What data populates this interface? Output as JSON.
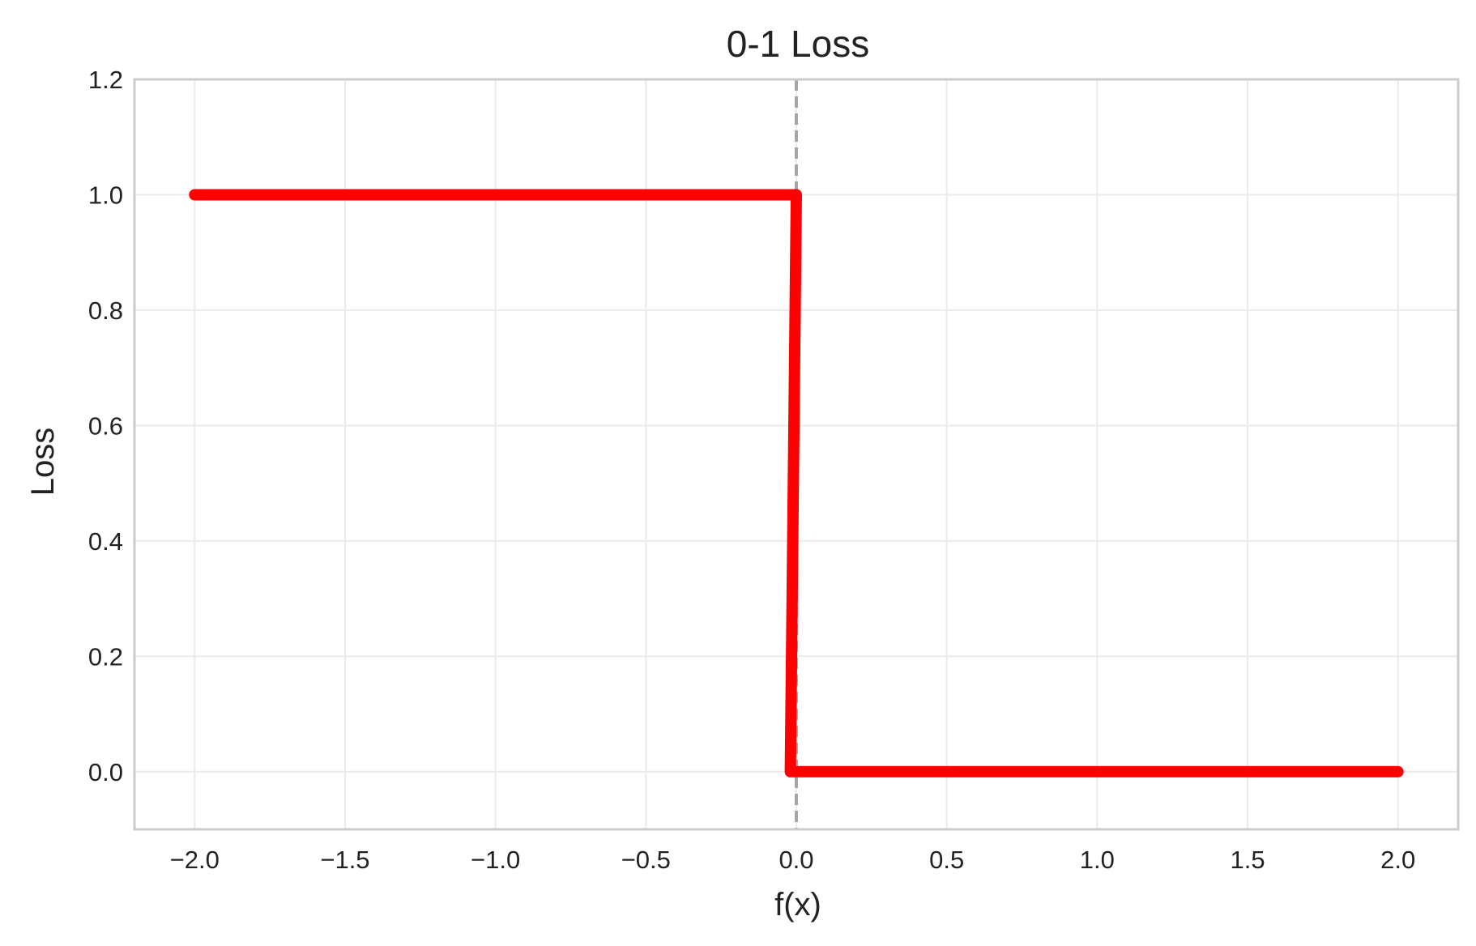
{
  "chart_data": {
    "type": "line",
    "title": "0-1 Loss",
    "xlabel": "f(x)",
    "ylabel": "Loss",
    "xlim": [
      -2.2,
      2.2
    ],
    "ylim": [
      -0.1,
      1.2
    ],
    "xticks": [
      -2.0,
      -1.5,
      -1.0,
      -0.5,
      0.0,
      0.5,
      1.0,
      1.5,
      2.0
    ],
    "xtick_labels": [
      "−2.0",
      "−1.5",
      "−1.0",
      "−0.5",
      "0.0",
      "0.5",
      "1.0",
      "1.5",
      "2.0"
    ],
    "yticks": [
      0.0,
      0.2,
      0.4,
      0.6,
      0.8,
      1.0,
      1.2
    ],
    "ytick_labels": [
      "0.0",
      "0.2",
      "0.4",
      "0.6",
      "0.8",
      "1.0",
      "1.2"
    ],
    "grid": true,
    "series": [
      {
        "color": "#ff0000",
        "points": [
          [
            -2.0,
            1.0
          ],
          [
            -0.02,
            1.0
          ],
          [
            0.0,
            1.0
          ],
          [
            -0.02,
            0.0
          ],
          [
            0.02,
            0.0
          ],
          [
            2.0,
            0.0
          ]
        ]
      }
    ],
    "reference_lines": [
      {
        "orientation": "vertical",
        "x": 0.0,
        "color": "#a6a6a6",
        "style": "dashed"
      }
    ]
  }
}
